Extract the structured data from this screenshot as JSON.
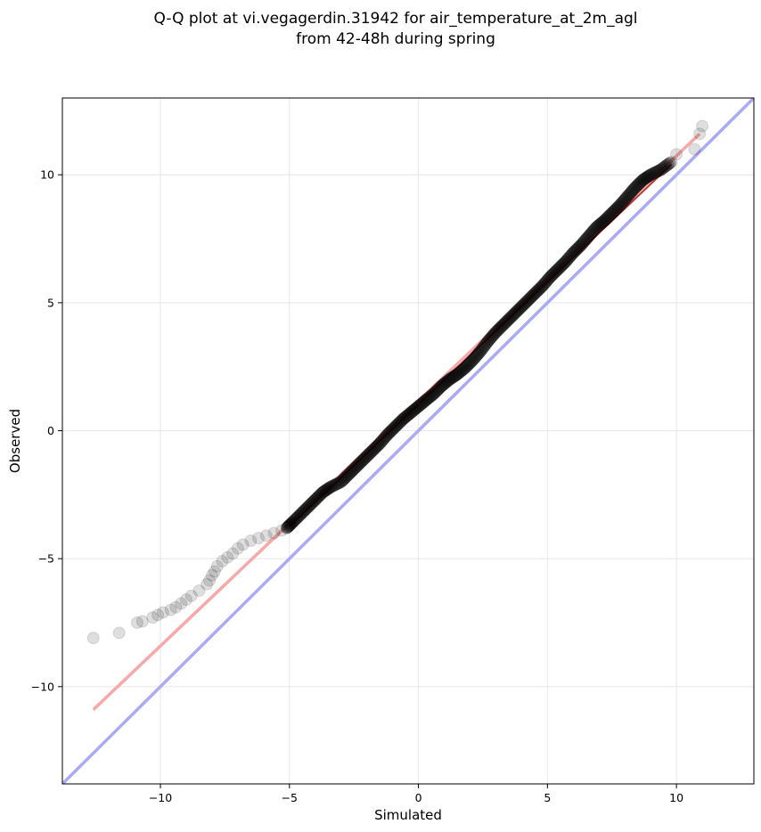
{
  "chart_data": {
    "type": "scatter",
    "title_line1": "Q-Q plot at vi.vegagerdin.31942 for air_temperature_at_2m_agl",
    "title_line2": "from 42-48h during spring",
    "xlabel": "Simulated",
    "ylabel": "Observed",
    "xlim": [
      -13.8,
      13.0
    ],
    "ylim": [
      -13.8,
      13.0
    ],
    "xticks": [
      -10,
      -5,
      0,
      5,
      10
    ],
    "yticks": [
      -10,
      -5,
      0,
      5,
      10
    ],
    "xtick_labels": [
      "−10",
      "−5",
      "0",
      "5",
      "10"
    ],
    "ytick_labels": [
      "−10",
      "−5",
      "0",
      "5",
      "10"
    ],
    "grid": true,
    "reference_line": {
      "color": "#aaaaf5",
      "slope": 1,
      "intercept": 0
    },
    "fit_line": {
      "color": "#f7a8a8",
      "x": [
        -12.6,
        10.9
      ],
      "y": [
        -10.9,
        11.6
      ]
    },
    "point_color": "#000000",
    "highlight_color": "#b00000",
    "points": [
      [
        -12.6,
        -8.1
      ],
      [
        -11.6,
        -7.9
      ],
      [
        -10.9,
        -7.5
      ],
      [
        -10.7,
        -7.45
      ],
      [
        -10.3,
        -7.3
      ],
      [
        -10.1,
        -7.2
      ],
      [
        -9.9,
        -7.1
      ],
      [
        -9.6,
        -7.0
      ],
      [
        -9.4,
        -6.9
      ],
      [
        -9.2,
        -6.75
      ],
      [
        -9.0,
        -6.6
      ],
      [
        -8.8,
        -6.45
      ],
      [
        -8.5,
        -6.25
      ],
      [
        -8.2,
        -6.0
      ],
      [
        -8.1,
        -5.85
      ],
      [
        -8.0,
        -5.65
      ],
      [
        -7.9,
        -5.5
      ],
      [
        -7.8,
        -5.3
      ],
      [
        -7.6,
        -5.1
      ],
      [
        -7.4,
        -4.95
      ],
      [
        -7.2,
        -4.8
      ],
      [
        -7.0,
        -4.6
      ],
      [
        -6.8,
        -4.45
      ],
      [
        -6.5,
        -4.3
      ],
      [
        -6.2,
        -4.2
      ],
      [
        -5.9,
        -4.1
      ],
      [
        -5.6,
        -4.0
      ],
      [
        -5.3,
        -3.9
      ],
      [
        -5.1,
        -3.8
      ],
      [
        -4.9,
        -3.6
      ],
      [
        -4.6,
        -3.3
      ],
      [
        -4.3,
        -3.0
      ],
      [
        -4.0,
        -2.7
      ],
      [
        -3.7,
        -2.4
      ],
      [
        -3.4,
        -2.2
      ],
      [
        -3.0,
        -2.0
      ],
      [
        -2.7,
        -1.7
      ],
      [
        -2.4,
        -1.4
      ],
      [
        -2.1,
        -1.1
      ],
      [
        -1.8,
        -0.8
      ],
      [
        -1.5,
        -0.5
      ],
      [
        -1.2,
        -0.15
      ],
      [
        -0.9,
        0.15
      ],
      [
        -0.6,
        0.45
      ],
      [
        -0.3,
        0.7
      ],
      [
        0.0,
        0.95
      ],
      [
        0.3,
        1.2
      ],
      [
        0.6,
        1.45
      ],
      [
        0.9,
        1.75
      ],
      [
        1.2,
        2.0
      ],
      [
        1.5,
        2.2
      ],
      [
        1.8,
        2.45
      ],
      [
        2.1,
        2.75
      ],
      [
        2.4,
        3.1
      ],
      [
        2.7,
        3.5
      ],
      [
        3.0,
        3.85
      ],
      [
        3.3,
        4.15
      ],
      [
        3.6,
        4.45
      ],
      [
        3.9,
        4.75
      ],
      [
        4.2,
        5.05
      ],
      [
        4.5,
        5.35
      ],
      [
        4.8,
        5.65
      ],
      [
        5.1,
        6.0
      ],
      [
        5.4,
        6.3
      ],
      [
        5.7,
        6.6
      ],
      [
        6.0,
        6.95
      ],
      [
        6.3,
        7.25
      ],
      [
        6.6,
        7.6
      ],
      [
        6.9,
        7.95
      ],
      [
        7.2,
        8.2
      ],
      [
        7.5,
        8.5
      ],
      [
        7.8,
        8.8
      ],
      [
        8.1,
        9.15
      ],
      [
        8.4,
        9.5
      ],
      [
        8.7,
        9.8
      ],
      [
        9.0,
        10.0
      ],
      [
        9.4,
        10.2
      ],
      [
        9.8,
        10.5
      ],
      [
        10.0,
        10.8
      ],
      [
        10.7,
        11.0
      ],
      [
        10.9,
        11.6
      ],
      [
        11.0,
        11.9
      ]
    ]
  }
}
